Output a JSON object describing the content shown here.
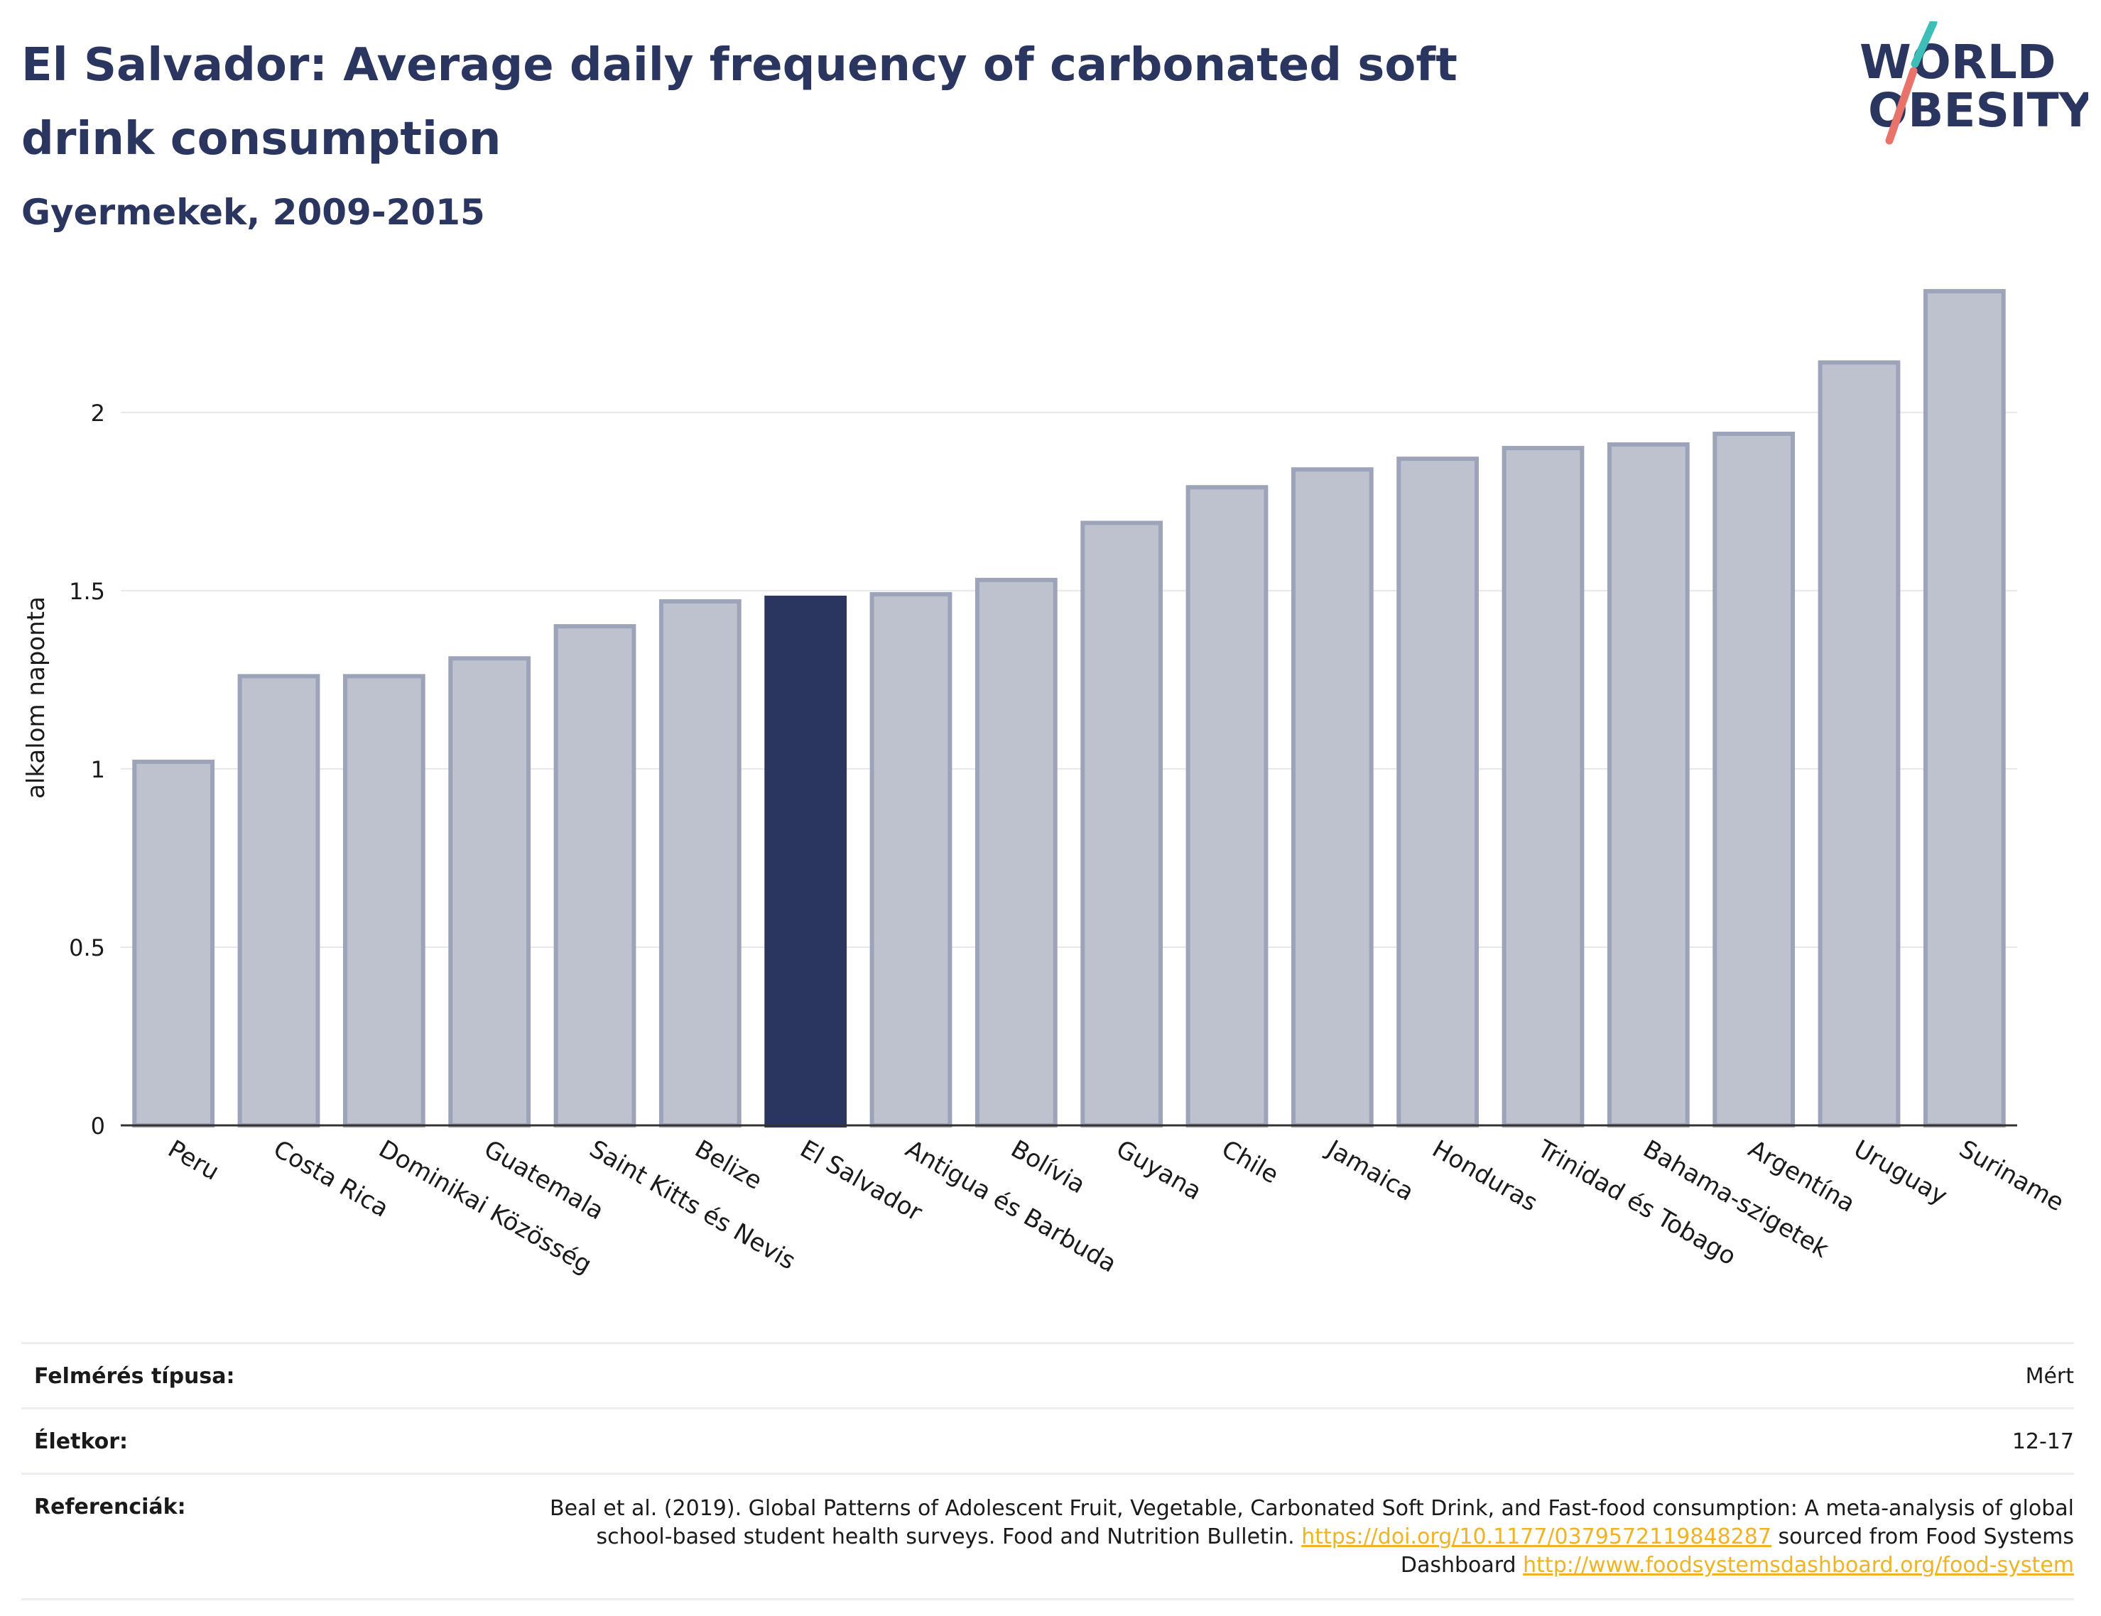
{
  "header": {
    "title": "El Salvador: Average daily frequency of carbonated soft drink consumption",
    "subtitle": "Gyermekek, 2009-2015"
  },
  "logo": {
    "line1": "WORLD",
    "line2": "OBESITY"
  },
  "colors": {
    "highlight": "#2a365f",
    "bar_fill": "#bec2cf",
    "bar_stroke": "#9da3b8",
    "logo_teal": "#3dbfb8",
    "logo_coral": "#e8736a",
    "link": "#f0b323"
  },
  "chart_data": {
    "type": "bar",
    "title": "El Salvador: Average daily frequency of carbonated soft drink consumption",
    "subtitle": "Gyermekek, 2009-2015",
    "ylabel": "alkalom naponta",
    "xlabel": "",
    "ylim": [
      0,
      2.4
    ],
    "yticks": [
      0,
      0.5,
      1,
      1.5,
      2
    ],
    "ytick_labels": [
      "0",
      "0.5",
      "1",
      "1.5",
      "2"
    ],
    "grid": true,
    "highlight": "El Salvador",
    "categories": [
      "Peru",
      "Costa Rica",
      "Dominikai Közösség",
      "Guatemala",
      "Saint Kitts és Nevis",
      "Belize",
      "El Salvador",
      "Antigua és Barbuda",
      "Bolívia",
      "Guyana",
      "Chile",
      "Jamaica",
      "Honduras",
      "Trinidad és Tobago",
      "Bahama-szigetek",
      "Argentína",
      "Uruguay",
      "Suriname"
    ],
    "values": [
      1.02,
      1.26,
      1.26,
      1.31,
      1.4,
      1.47,
      1.48,
      1.49,
      1.53,
      1.69,
      1.79,
      1.84,
      1.87,
      1.9,
      1.91,
      1.94,
      2.14,
      2.34
    ]
  },
  "meta": {
    "survey_label": "Felmérés típusa:",
    "survey_value": "Mért",
    "age_label": "Életkor:",
    "age_value": "12-17",
    "ref_label": "Referenciák:",
    "ref_text1": "Beal et al. (2019). Global Patterns of Adolescent Fruit, Vegetable, Carbonated Soft Drink, and Fast-food consumption: A meta-analysis of global school-based student health surveys. Food and Nutrition Bulletin.",
    "ref_link1": "https://doi.org/10.1177/0379572119848287",
    "ref_text2": "sourced from Food Systems Dashboard",
    "ref_link2": "http://www.foodsystemsdashboard.org/food-system"
  }
}
